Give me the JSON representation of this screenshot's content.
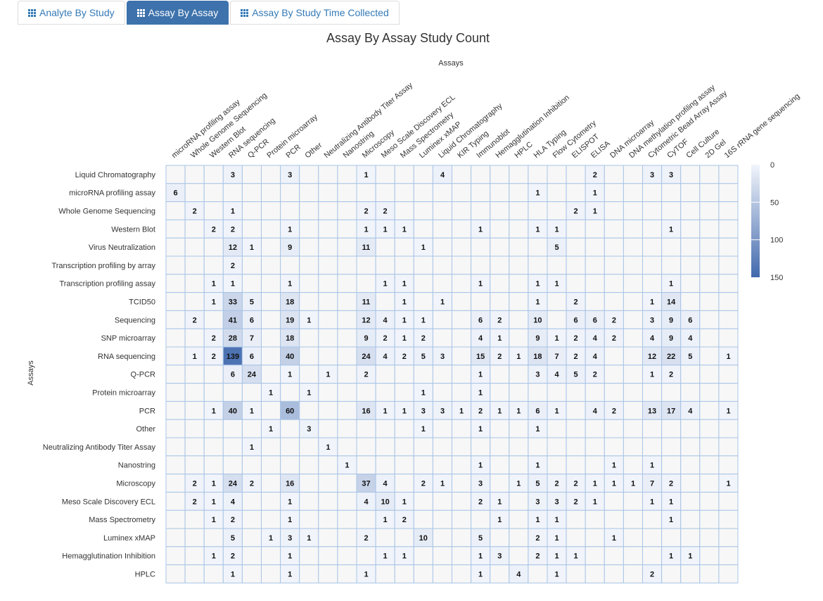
{
  "tabs": [
    {
      "label": "Analyte By Study",
      "active": false
    },
    {
      "label": "Assay By Assay",
      "active": true
    },
    {
      "label": "Assay By Study Time Collected",
      "active": false
    }
  ],
  "colors": {
    "accent": "#3d72ac",
    "low": "#f2f5fb",
    "high": "#4169ad",
    "cell_border": "#a8c4e6"
  },
  "chart_data": {
    "type": "heatmap",
    "title": "Assay By Assay Study Count",
    "xlabel": "Assays",
    "ylabel": "Assays",
    "x_categories": [
      "microRNA profiling assay",
      "Whole Genome Sequencing",
      "Western Blot",
      "RNA sequencing",
      "Q-PCR",
      "Protein microarray",
      "PCR",
      "Other",
      "Neutralizing Antibody Titer Assay",
      "Nanostring",
      "Microscopy",
      "Meso Scale Discovery ECL",
      "Mass Spectrometry",
      "Luminex xMAP",
      "Liquid Chromatography",
      "KIR Typing",
      "Immunoblot",
      "Hemagglutination Inhibition",
      "HPLC",
      "HLA Typing",
      "Flow Cytometry",
      "ELISPOT",
      "ELISA",
      "DNA microarray",
      "DNA methylation profiling assay",
      "Cytometric Bead Array Assay",
      "CyTOF",
      "Cell Culture",
      "2D Gel",
      "16S rRNA gene sequencing"
    ],
    "y_categories": [
      "Liquid Chromatography",
      "microRNA profiling assay",
      "Whole Genome Sequencing",
      "Western Blot",
      "Virus Neutralization",
      "Transcription profiling by array",
      "Transcription profiling assay",
      "TCID50",
      "Sequencing",
      "SNP microarray",
      "RNA sequencing",
      "Q-PCR",
      "Protein microarray",
      "PCR",
      "Other",
      "Neutralizing Antibody Titer Assay",
      "Nanostring",
      "Microscopy",
      "Meso Scale Discovery ECL",
      "Mass Spectrometry",
      "Luminex xMAP",
      "Hemagglutination Inhibition",
      "HPLC"
    ],
    "values": [
      [
        null,
        null,
        null,
        3,
        null,
        null,
        3,
        null,
        null,
        null,
        1,
        null,
        null,
        null,
        4,
        null,
        null,
        null,
        null,
        null,
        null,
        null,
        2,
        null,
        null,
        3,
        3,
        null,
        null,
        null
      ],
      [
        6,
        null,
        null,
        null,
        null,
        null,
        null,
        null,
        null,
        null,
        null,
        null,
        null,
        null,
        null,
        null,
        null,
        null,
        null,
        1,
        null,
        null,
        1,
        null,
        null,
        null,
        null,
        null,
        null,
        null
      ],
      [
        null,
        2,
        null,
        1,
        null,
        null,
        null,
        null,
        null,
        null,
        2,
        2,
        null,
        null,
        null,
        null,
        null,
        null,
        null,
        null,
        null,
        2,
        1,
        null,
        null,
        null,
        null,
        null,
        null,
        null
      ],
      [
        null,
        null,
        2,
        2,
        null,
        null,
        1,
        null,
        null,
        null,
        1,
        1,
        1,
        null,
        null,
        null,
        1,
        null,
        null,
        1,
        1,
        null,
        null,
        null,
        null,
        null,
        1,
        null,
        null,
        null
      ],
      [
        null,
        null,
        null,
        12,
        1,
        null,
        9,
        null,
        null,
        null,
        11,
        null,
        null,
        1,
        null,
        null,
        null,
        null,
        null,
        null,
        5,
        null,
        null,
        null,
        null,
        null,
        null,
        null,
        null,
        null
      ],
      [
        null,
        null,
        null,
        2,
        null,
        null,
        null,
        null,
        null,
        null,
        null,
        null,
        null,
        null,
        null,
        null,
        null,
        null,
        null,
        null,
        null,
        null,
        null,
        null,
        null,
        null,
        null,
        null,
        null,
        null
      ],
      [
        null,
        null,
        1,
        1,
        null,
        null,
        1,
        null,
        null,
        null,
        null,
        1,
        1,
        null,
        null,
        null,
        1,
        null,
        null,
        1,
        1,
        null,
        null,
        null,
        null,
        null,
        1,
        null,
        null,
        null
      ],
      [
        null,
        null,
        1,
        33,
        5,
        null,
        18,
        null,
        null,
        null,
        11,
        null,
        1,
        null,
        1,
        null,
        null,
        null,
        null,
        1,
        null,
        2,
        null,
        null,
        null,
        1,
        14,
        null,
        null,
        null
      ],
      [
        null,
        2,
        null,
        41,
        6,
        null,
        19,
        1,
        null,
        null,
        12,
        4,
        1,
        1,
        null,
        null,
        6,
        2,
        null,
        10,
        null,
        6,
        6,
        2,
        null,
        3,
        9,
        6,
        null,
        null
      ],
      [
        null,
        null,
        2,
        28,
        7,
        null,
        18,
        null,
        null,
        null,
        9,
        2,
        1,
        2,
        null,
        null,
        4,
        1,
        null,
        9,
        1,
        2,
        4,
        2,
        null,
        4,
        9,
        4,
        null,
        null
      ],
      [
        null,
        1,
        2,
        139,
        6,
        null,
        40,
        null,
        null,
        null,
        24,
        4,
        2,
        5,
        3,
        null,
        15,
        2,
        1,
        18,
        7,
        2,
        4,
        null,
        null,
        12,
        22,
        5,
        null,
        1
      ],
      [
        null,
        null,
        null,
        6,
        24,
        null,
        1,
        null,
        1,
        null,
        2,
        null,
        null,
        null,
        null,
        null,
        1,
        null,
        null,
        3,
        4,
        5,
        2,
        null,
        null,
        1,
        2,
        null,
        null,
        null
      ],
      [
        null,
        null,
        null,
        null,
        null,
        1,
        null,
        1,
        null,
        null,
        null,
        null,
        null,
        1,
        null,
        null,
        1,
        null,
        null,
        null,
        null,
        null,
        null,
        null,
        null,
        null,
        null,
        null,
        null,
        null
      ],
      [
        null,
        null,
        1,
        40,
        1,
        null,
        60,
        null,
        null,
        null,
        16,
        1,
        1,
        3,
        3,
        1,
        2,
        1,
        1,
        6,
        1,
        null,
        4,
        2,
        null,
        13,
        17,
        4,
        null,
        1
      ],
      [
        null,
        null,
        null,
        null,
        null,
        1,
        null,
        3,
        null,
        null,
        null,
        null,
        null,
        1,
        null,
        null,
        1,
        null,
        null,
        1,
        null,
        null,
        null,
        null,
        null,
        null,
        null,
        null,
        null,
        null
      ],
      [
        null,
        null,
        null,
        null,
        1,
        null,
        null,
        null,
        1,
        null,
        null,
        null,
        null,
        null,
        null,
        null,
        null,
        null,
        null,
        null,
        null,
        null,
        null,
        null,
        null,
        null,
        null,
        null,
        null,
        null
      ],
      [
        null,
        null,
        null,
        null,
        null,
        null,
        null,
        null,
        null,
        1,
        null,
        null,
        null,
        null,
        null,
        null,
        1,
        null,
        null,
        1,
        null,
        null,
        null,
        1,
        null,
        1,
        null,
        null,
        null,
        null
      ],
      [
        null,
        2,
        1,
        24,
        2,
        null,
        16,
        null,
        null,
        null,
        37,
        4,
        null,
        2,
        1,
        null,
        3,
        null,
        1,
        5,
        2,
        2,
        1,
        1,
        1,
        7,
        2,
        null,
        null,
        1
      ],
      [
        null,
        2,
        1,
        4,
        null,
        null,
        1,
        null,
        null,
        null,
        4,
        10,
        1,
        null,
        null,
        null,
        2,
        1,
        null,
        3,
        3,
        2,
        1,
        null,
        null,
        1,
        1,
        null,
        null,
        null
      ],
      [
        null,
        null,
        1,
        2,
        null,
        null,
        1,
        null,
        null,
        null,
        null,
        1,
        2,
        null,
        null,
        null,
        null,
        1,
        null,
        1,
        1,
        null,
        null,
        null,
        null,
        null,
        1,
        null,
        null,
        null
      ],
      [
        null,
        null,
        null,
        5,
        null,
        1,
        3,
        1,
        null,
        null,
        2,
        null,
        null,
        10,
        null,
        null,
        5,
        null,
        null,
        2,
        1,
        null,
        null,
        1,
        null,
        null,
        null,
        null,
        null,
        null
      ],
      [
        null,
        null,
        1,
        2,
        null,
        null,
        1,
        null,
        null,
        null,
        null,
        1,
        1,
        null,
        null,
        null,
        1,
        3,
        null,
        2,
        1,
        1,
        null,
        null,
        null,
        null,
        1,
        1,
        null,
        null
      ],
      [
        null,
        null,
        null,
        1,
        null,
        null,
        1,
        null,
        null,
        null,
        1,
        null,
        null,
        null,
        null,
        null,
        1,
        null,
        4,
        null,
        1,
        null,
        null,
        null,
        null,
        2,
        null,
        null,
        null,
        null
      ]
    ],
    "colorscale": {
      "min": 0,
      "max": 150,
      "ticks": [
        0,
        50,
        100,
        150
      ]
    },
    "grid": true,
    "legend_placement": "right"
  }
}
